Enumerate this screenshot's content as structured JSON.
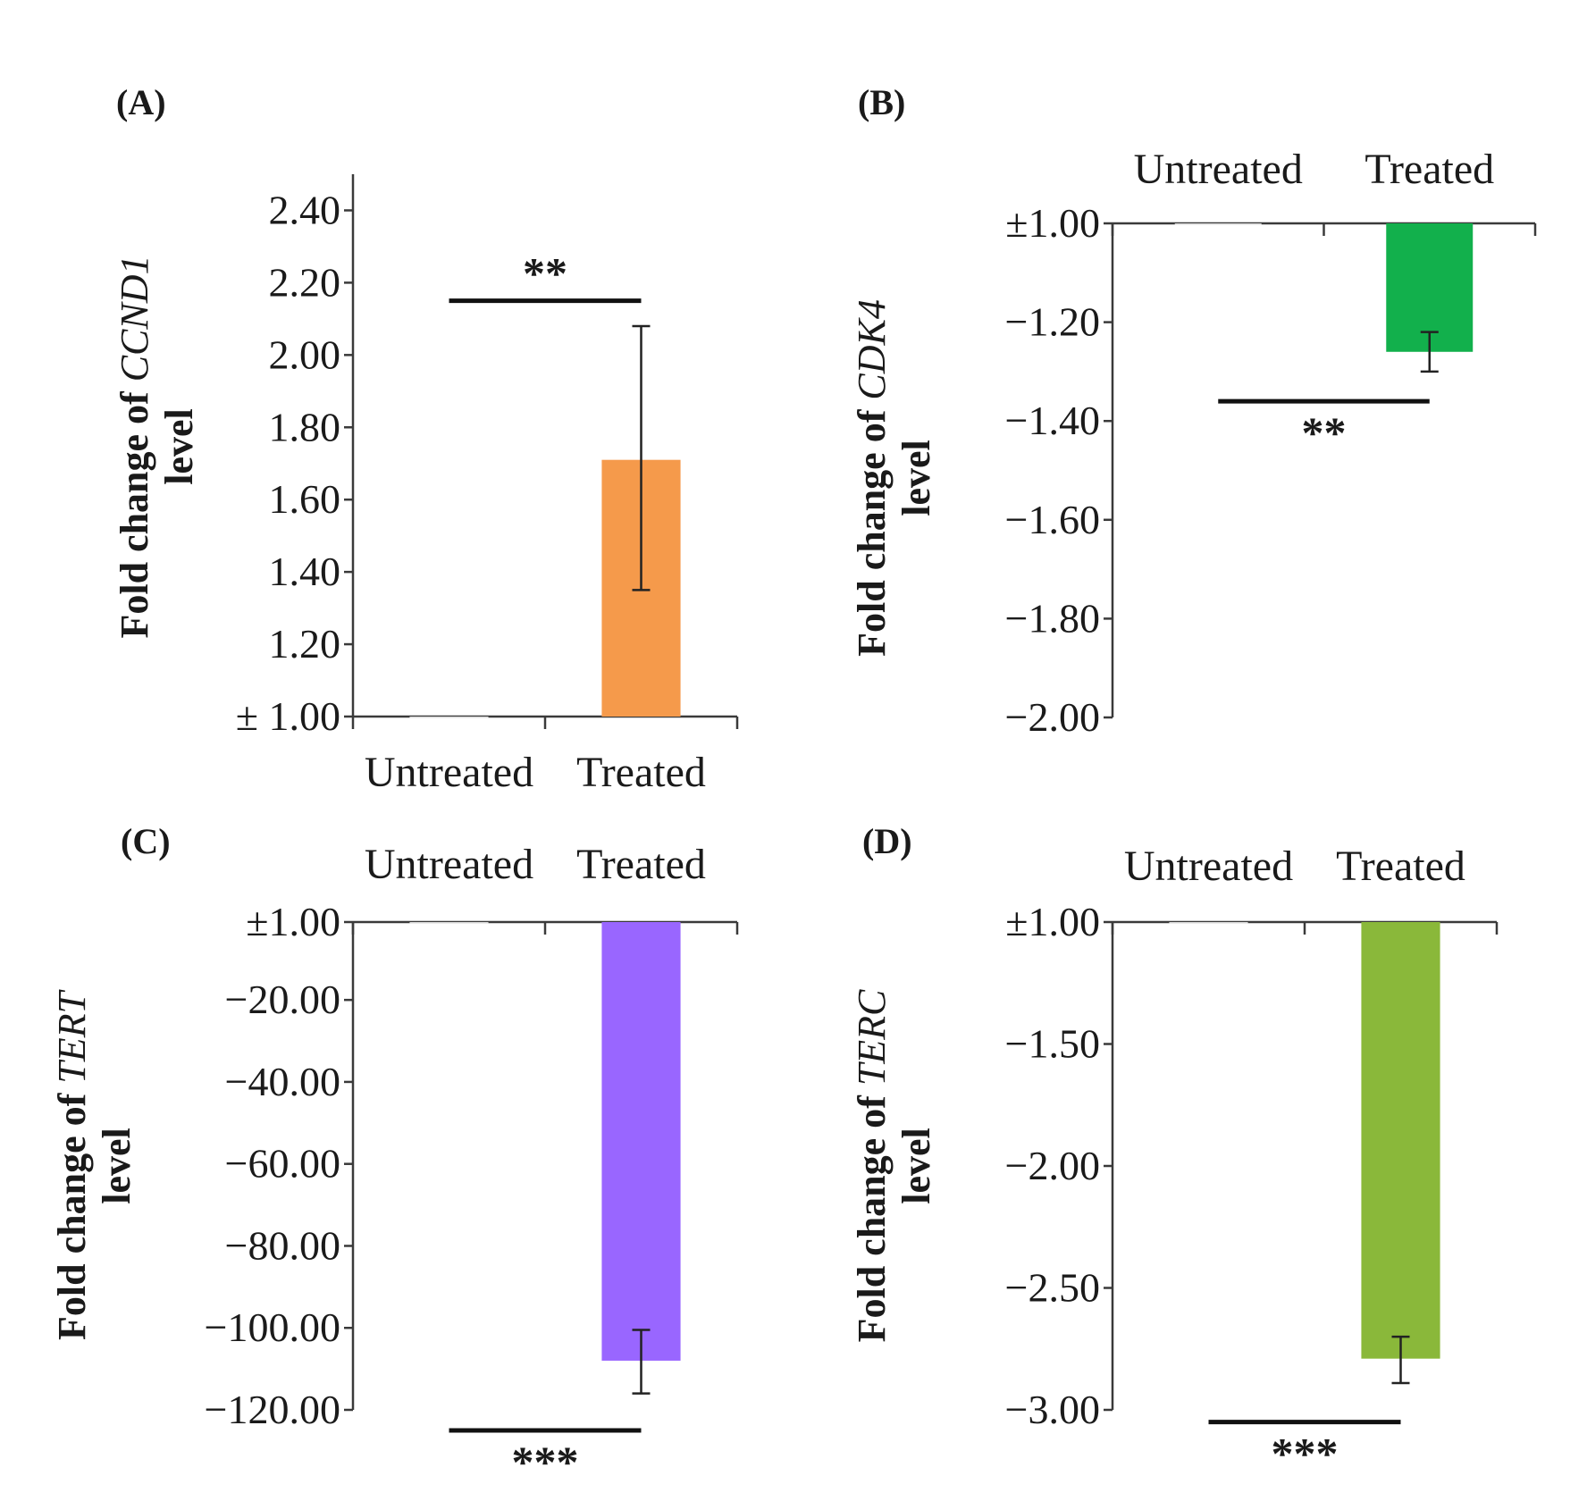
{
  "chart_data": [
    {
      "type": "bar",
      "panel_label": "(A)",
      "ylabel": "Fold change of CCND1 level",
      "ylabel_prefix": "Fold change of ",
      "gene": "CCND1",
      "ylabel_suffix": "level",
      "categories": [
        "Untreated",
        "Treated"
      ],
      "values": [
        1.0,
        1.71
      ],
      "error_low": [
        null,
        1.35
      ],
      "error_high": [
        null,
        2.08
      ],
      "ylim": [
        1.0,
        2.5
      ],
      "yticks": [
        1.0,
        1.2,
        1.4,
        1.6,
        1.8,
        2.0,
        2.2,
        2.4
      ],
      "ytick_labels": [
        "± 1.00",
        "1.20",
        "1.40",
        "1.60",
        "1.80",
        "2.00",
        "2.20",
        "2.40"
      ],
      "bar_color": "#f59a4b",
      "significance": "**",
      "significance_value": 2.15,
      "category_labels_position": "bottom"
    },
    {
      "type": "bar",
      "panel_label": "(B)",
      "ylabel": "Fold change of CDK4 level",
      "ylabel_prefix": "Fold change of ",
      "gene": "CDK4",
      "ylabel_suffix": "level",
      "categories": [
        "Untreated",
        "Treated"
      ],
      "values": [
        -1.0,
        -1.26
      ],
      "error_low": [
        null,
        -1.3
      ],
      "error_high": [
        null,
        -1.22
      ],
      "ylim": [
        -2.0,
        -1.0
      ],
      "yticks": [
        -1.0,
        -1.2,
        -1.4,
        -1.6,
        -1.8,
        -2.0
      ],
      "ytick_labels": [
        "±1.00",
        "−1.20",
        "−1.40",
        "−1.60",
        "−1.80",
        "−2.00"
      ],
      "bar_color": "#12b04c",
      "significance": "**",
      "significance_value": -1.36,
      "category_labels_position": "top"
    },
    {
      "type": "bar",
      "panel_label": "(C)",
      "ylabel": "Fold change of TERT level",
      "ylabel_prefix": "Fold change of ",
      "gene": "TERT",
      "ylabel_suffix": "level",
      "categories": [
        "Untreated",
        "Treated"
      ],
      "values": [
        -1.0,
        -108.0
      ],
      "error_low": [
        null,
        -116.0
      ],
      "error_high": [
        null,
        -100.5
      ],
      "ylim": [
        -120.0,
        -1.0
      ],
      "yticks": [
        -1.0,
        -20.0,
        -40.0,
        -60.0,
        -80.0,
        -100.0,
        -120.0
      ],
      "ytick_labels": [
        "±1.00",
        "−20.00",
        "−40.00",
        "−60.00",
        "−80.00",
        "−100.00",
        "−120.00"
      ],
      "bar_color": "#9966ff",
      "significance": "***",
      "significance_value": -125.0,
      "category_labels_position": "top"
    },
    {
      "type": "bar",
      "panel_label": "(D)",
      "ylabel": "Fold change of TERC level",
      "ylabel_prefix": "Fold change of ",
      "gene": "TERC",
      "ylabel_suffix": "level",
      "categories": [
        "Untreated",
        "Treated"
      ],
      "values": [
        -1.0,
        -2.79
      ],
      "error_low": [
        null,
        -2.89
      ],
      "error_high": [
        null,
        -2.7
      ],
      "ylim": [
        -3.0,
        -1.0
      ],
      "yticks": [
        -1.0,
        -1.5,
        -2.0,
        -2.5,
        -3.0
      ],
      "ytick_labels": [
        "±1.00",
        "−1.50",
        "−2.00",
        "−2.50",
        "−3.00"
      ],
      "bar_color": "#8ab83a",
      "significance": "***",
      "significance_value": -3.05,
      "category_labels_position": "top"
    }
  ]
}
